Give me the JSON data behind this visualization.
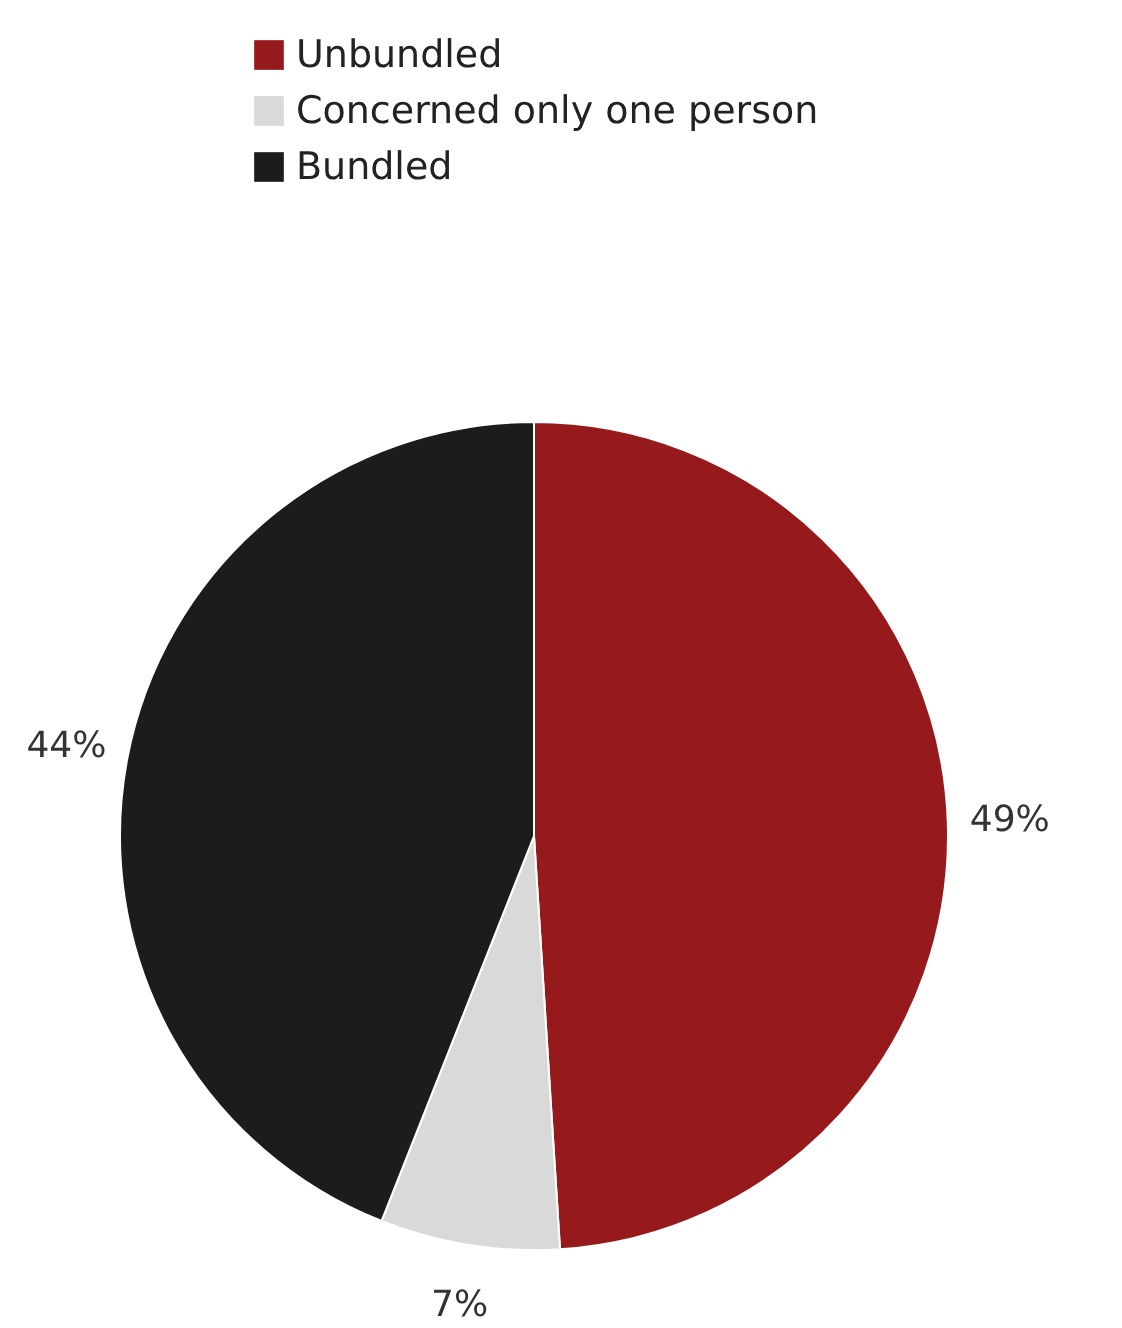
{
  "chart_data": {
    "type": "pie",
    "categories": [
      "Unbundled",
      "Concerned only one person",
      "Bundled"
    ],
    "values": [
      49,
      7,
      44
    ],
    "colors": [
      "#96191b",
      "#d9d9d9",
      "#1c1c1c"
    ],
    "value_labels": [
      "49%",
      "7%",
      "44%"
    ],
    "legend": "top left"
  }
}
